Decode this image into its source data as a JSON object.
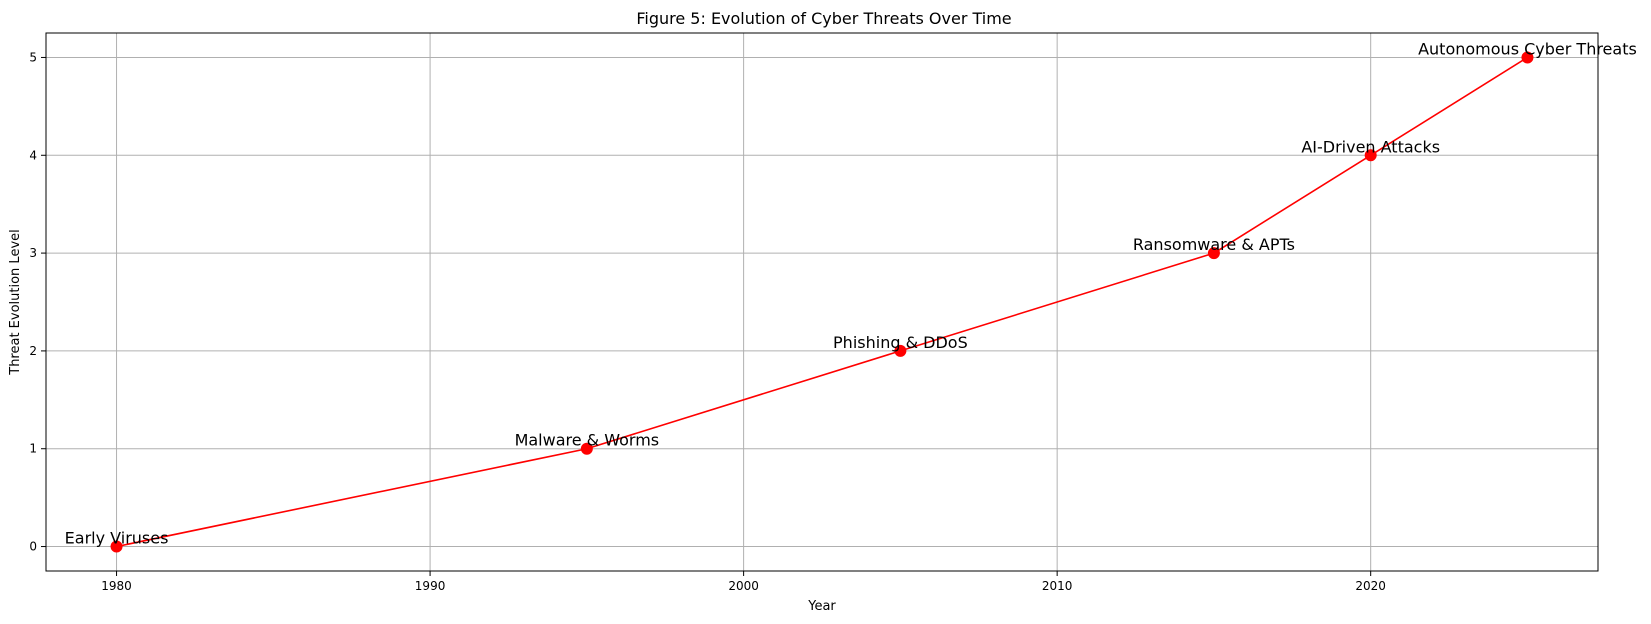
{
  "chart_data": {
    "type": "line",
    "title": "Figure 5: Evolution of Cyber Threats Over Time",
    "xlabel": "Year",
    "ylabel": "Threat Evolution Level",
    "xlim": [
      1977.75,
      2027.25
    ],
    "ylim": [
      -0.25,
      5.25
    ],
    "xticks": [
      1980,
      1990,
      2000,
      2010,
      2020
    ],
    "yticks": [
      0,
      1,
      2,
      3,
      4,
      5
    ],
    "grid": true,
    "series": [
      {
        "color": "#ff0000",
        "marker": "circle",
        "points": [
          {
            "x": 1980,
            "y": 0,
            "label": "Early Viruses"
          },
          {
            "x": 1995,
            "y": 1,
            "label": "Malware & Worms"
          },
          {
            "x": 2005,
            "y": 2,
            "label": "Phishing & DDoS"
          },
          {
            "x": 2015,
            "y": 3,
            "label": "Ransomware & APTs"
          },
          {
            "x": 2020,
            "y": 4,
            "label": "AI-Driven Attacks"
          },
          {
            "x": 2025,
            "y": 5,
            "label": "Autonomous Cyber Threats"
          }
        ]
      }
    ]
  }
}
